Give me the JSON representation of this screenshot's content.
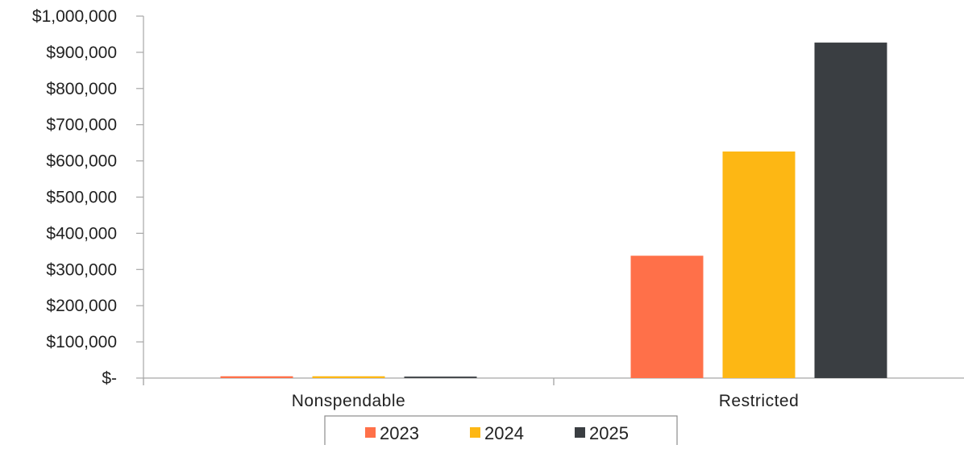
{
  "chart_data": {
    "type": "bar",
    "categories": [
      "Nonspendable",
      "Restricted"
    ],
    "series": [
      {
        "name": "2023",
        "color": "#FF7049",
        "values": [
          5000,
          338000
        ]
      },
      {
        "name": "2024",
        "color": "#FDB714",
        "values": [
          5000,
          626000
        ]
      },
      {
        "name": "2025",
        "color": "#3A3E42",
        "values": [
          4000,
          927000
        ]
      }
    ],
    "ylim": [
      0,
      1000000
    ],
    "y_ticks": [
      0,
      100000,
      200000,
      300000,
      400000,
      500000,
      600000,
      700000,
      800000,
      900000,
      1000000
    ],
    "y_tick_labels": [
      "$-",
      "$100,000",
      "$200,000",
      "$300,000",
      "$400,000",
      "$500,000",
      "$600,000",
      "$700,000",
      "$800,000",
      "$900,000",
      "$1,000,000"
    ],
    "title": "",
    "xlabel": "",
    "ylabel": "",
    "grid": false,
    "legend_position": "bottom"
  }
}
